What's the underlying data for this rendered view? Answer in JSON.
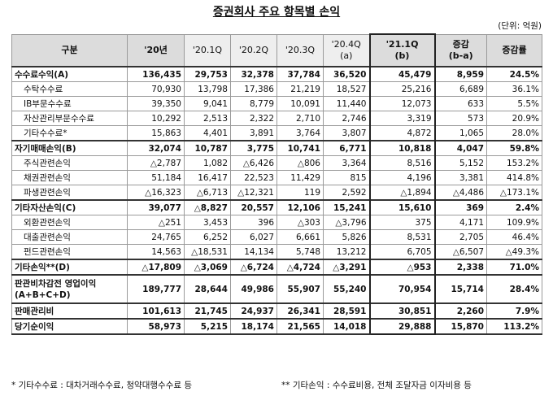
{
  "title": "증권회사 주요 항목별 손익",
  "unit": "(단위: 억원)",
  "headers": {
    "category": "구분",
    "y20": "'20년",
    "q1": "'20.1Q",
    "q2": "'20.2Q",
    "q3": "'20.3Q",
    "q4": "'20.4Q\n(a)",
    "q21": "'21.1Q\n(b)",
    "change": "증감\n(b-a)",
    "rate": "증감률"
  },
  "rows": [
    {
      "label": "수수료수익(A)",
      "y20": "136,435",
      "q1": "29,753",
      "q2": "32,378",
      "q3": "37,784",
      "q4": "36,520",
      "q21": "45,479",
      "change": "8,959",
      "rate": "24.5%"
    },
    {
      "label": "수탁수수료",
      "y20": "70,930",
      "q1": "13,798",
      "q2": "17,386",
      "q3": "21,219",
      "q4": "18,527",
      "q21": "25,216",
      "change": "6,689",
      "rate": "36.1%"
    },
    {
      "label": "IB부문수수료",
      "y20": "39,350",
      "q1": "9,041",
      "q2": "8,779",
      "q3": "10,091",
      "q4": "11,440",
      "q21": "12,073",
      "change": "633",
      "rate": "5.5%"
    },
    {
      "label": "자산관리부문수수료",
      "y20": "10,292",
      "q1": "2,513",
      "q2": "2,322",
      "q3": "2,710",
      "q4": "2,746",
      "q21": "3,319",
      "change": "573",
      "rate": "20.9%"
    },
    {
      "label": "기타수수료*",
      "y20": "15,863",
      "q1": "4,401",
      "q2": "3,891",
      "q3": "3,764",
      "q4": "3,807",
      "q21": "4,872",
      "change": "1,065",
      "rate": "28.0%"
    },
    {
      "label": "자기매매손익(B)",
      "y20": "32,074",
      "q1": "10,787",
      "q2": "3,775",
      "q3": "10,741",
      "q4": "6,771",
      "q21": "10,818",
      "change": "4,047",
      "rate": "59.8%"
    },
    {
      "label": "주식관련손익",
      "y20": "△2,787",
      "q1": "1,082",
      "q2": "△6,426",
      "q3": "△806",
      "q4": "3,364",
      "q21": "8,516",
      "change": "5,152",
      "rate": "153.2%"
    },
    {
      "label": "채권관련손익",
      "y20": "51,184",
      "q1": "16,417",
      "q2": "22,523",
      "q3": "11,429",
      "q4": "815",
      "q21": "4,196",
      "change": "3,381",
      "rate": "414.8%"
    },
    {
      "label": "파생관련손익",
      "y20": "△16,323",
      "q1": "△6,713",
      "q2": "△12,321",
      "q3": "119",
      "q4": "2,592",
      "q21": "△1,894",
      "change": "△4,486",
      "rate": "△173.1%"
    },
    {
      "label": "기타자산손익(C)",
      "y20": "39,077",
      "q1": "△8,827",
      "q2": "20,557",
      "q3": "12,106",
      "q4": "15,241",
      "q21": "15,610",
      "change": "369",
      "rate": "2.4%"
    },
    {
      "label": "외환관련손익",
      "y20": "△251",
      "q1": "3,453",
      "q2": "396",
      "q3": "△303",
      "q4": "△3,796",
      "q21": "375",
      "change": "4,171",
      "rate": "109.9%"
    },
    {
      "label": "대출관련손익",
      "y20": "24,765",
      "q1": "6,252",
      "q2": "6,027",
      "q3": "6,661",
      "q4": "5,826",
      "q21": "8,531",
      "change": "2,705",
      "rate": "46.4%"
    },
    {
      "label": "펀드관련손익",
      "y20": "14,563",
      "q1": "△18,531",
      "q2": "14,134",
      "q3": "5,748",
      "q4": "13,212",
      "q21": "6,705",
      "change": "△6,507",
      "rate": "△49.3%"
    },
    {
      "label": "기타손익**(D)",
      "y20": "△17,809",
      "q1": "△3,069",
      "q2": "△6,724",
      "q3": "△4,724",
      "q4": "△3,291",
      "q21": "△953",
      "change": "2,338",
      "rate": "71.0%"
    },
    {
      "label": "판관비차감전 영업이익(A+B+C+D)",
      "y20": "189,777",
      "q1": "28,644",
      "q2": "49,986",
      "q3": "55,907",
      "q4": "55,240",
      "q21": "70,954",
      "change": "15,714",
      "rate": "28.4%"
    },
    {
      "label": "판매관리비",
      "y20": "101,613",
      "q1": "21,745",
      "q2": "24,937",
      "q3": "26,341",
      "q4": "28,591",
      "q21": "30,851",
      "change": "2,260",
      "rate": "7.9%"
    },
    {
      "label": "당기순이익",
      "y20": "58,973",
      "q1": "5,215",
      "q2": "18,174",
      "q3": "21,565",
      "q4": "14,018",
      "q21": "29,888",
      "change": "15,870",
      "rate": "113.2%"
    }
  ],
  "footnotes": {
    "note1": "* 기타수수료 : 대차거래수수료, 청약대행수수료 등",
    "note2": "** 기타손익 : 수수료비용, 전체 조달자금 이자비용 등"
  }
}
